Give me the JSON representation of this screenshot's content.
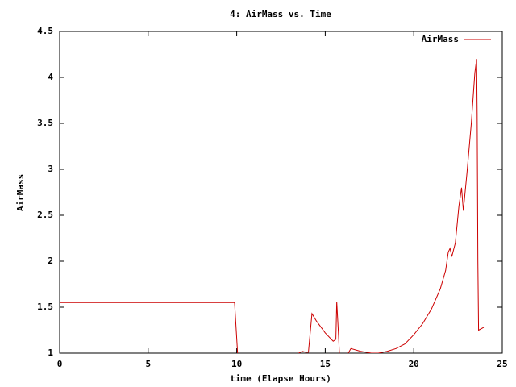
{
  "chart_data": {
    "type": "line",
    "title": "4: AirMass vs. Time",
    "xlabel": "time (Elapse Hours)",
    "ylabel": "AirMass",
    "xlim": [
      0,
      25
    ],
    "xticks": [
      0,
      5,
      10,
      15,
      20,
      25
    ],
    "ylim": [
      1,
      4.5
    ],
    "yticks": [
      1,
      1.5,
      2,
      2.5,
      3,
      3.5,
      4,
      4.5
    ],
    "grid": false,
    "legend": "top-right",
    "series": [
      {
        "name": "AirMass",
        "color": "#cc0000",
        "x": [
          0,
          9.88,
          10.05,
          null,
          13.5,
          13.7,
          13.9,
          14.05,
          14.25,
          14.5,
          15.0,
          15.45,
          15.6,
          15.65,
          15.75,
          15.8,
          null,
          16.3,
          16.45,
          17.0,
          17.6,
          18.0,
          18.5,
          19.0,
          19.5,
          20.0,
          20.5,
          21.0,
          21.5,
          21.8,
          21.95,
          22.05,
          22.15,
          22.35,
          22.55,
          22.7,
          22.8,
          23.0,
          23.25,
          23.45,
          23.55,
          23.58,
          23.62,
          23.66,
          23.95
        ],
        "values": [
          1.55,
          1.55,
          1,
          null,
          1,
          1.02,
          1.01,
          1.01,
          1.43,
          1.35,
          1.22,
          1.13,
          1.15,
          1.56,
          1.2,
          1,
          null,
          1,
          1.05,
          1.02,
          1.0,
          1.0,
          1.02,
          1.05,
          1.1,
          1.2,
          1.32,
          1.48,
          1.7,
          1.9,
          2.1,
          2.14,
          2.05,
          2.2,
          2.6,
          2.8,
          2.55,
          2.95,
          3.5,
          4.05,
          4.2,
          3.6,
          2.0,
          1.25,
          1.28
        ]
      }
    ]
  }
}
